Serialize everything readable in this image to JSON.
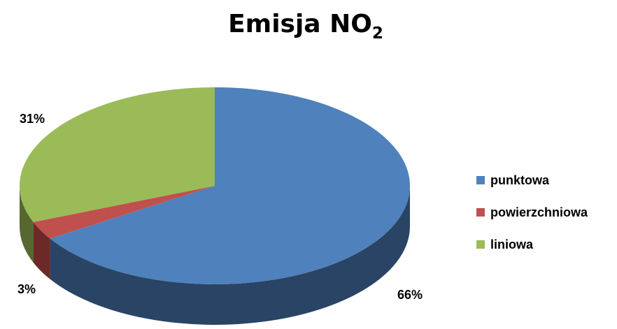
{
  "chart_data": {
    "type": "pie",
    "title": {
      "main": "Emisja NO",
      "subscript": "2"
    },
    "series": [
      {
        "name": "punktowa",
        "value": 66,
        "label": "66%",
        "color": "#4F81BD",
        "side_color": "#2A4466"
      },
      {
        "name": "powierzchniowa",
        "value": 3,
        "label": "3%",
        "color": "#C0504D",
        "side_color": "#6B2A28"
      },
      {
        "name": "liniowa",
        "value": 31,
        "label": "31%",
        "color": "#9BBB59",
        "side_color": "#56682F"
      }
    ],
    "three_d": true,
    "legend": "right"
  }
}
